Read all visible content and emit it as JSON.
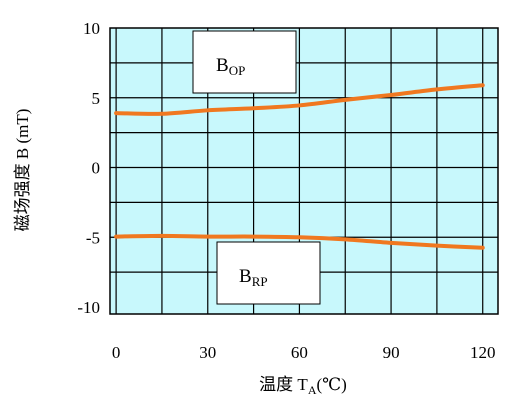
{
  "chart_data": {
    "type": "line",
    "title": "",
    "xlabel": {
      "main": "温度 T",
      "sub": "A",
      "unit": "(℃)"
    },
    "ylabel": "磁场强度 B (mT)",
    "x_ticks": [
      "0",
      "30",
      "60",
      "90",
      "120"
    ],
    "y_ticks": [
      "10",
      "5",
      "0",
      "-5",
      "-10"
    ],
    "xlim": [
      -2,
      125
    ],
    "ylim": [
      -10.5,
      10
    ],
    "grid": true,
    "background": "#c8f8fc",
    "series": [
      {
        "name": "BOP",
        "color": "#f07820",
        "x": [
          0,
          15,
          30,
          45,
          60,
          75,
          90,
          105,
          120
        ],
        "y": [
          3.9,
          3.85,
          4.1,
          4.25,
          4.45,
          4.85,
          5.2,
          5.6,
          5.9
        ]
      },
      {
        "name": "BRP",
        "color": "#f07820",
        "x": [
          0,
          15,
          30,
          45,
          60,
          75,
          90,
          105,
          120
        ],
        "y": [
          -4.95,
          -4.9,
          -4.95,
          -4.95,
          -5.0,
          -5.15,
          -5.4,
          -5.6,
          -5.75
        ]
      }
    ],
    "annotations": [
      {
        "id": "bop",
        "text": "B",
        "sub": "OP"
      },
      {
        "id": "brp",
        "text": "B",
        "sub": "RP"
      }
    ]
  }
}
